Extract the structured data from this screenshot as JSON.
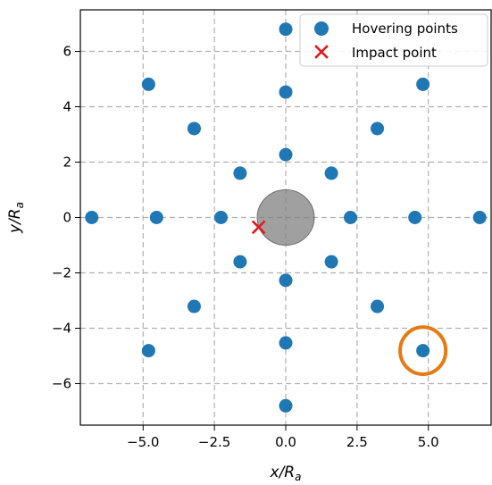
{
  "chart_data": {
    "type": "scatter",
    "xlabel": "x/R",
    "xlabel_sub": "a",
    "ylabel": "y/R",
    "ylabel_sub": "a",
    "xlim": [
      -7.2,
      7.2
    ],
    "ylim": [
      -7.5,
      7.5
    ],
    "xticks": [
      -5.0,
      -2.5,
      0.0,
      2.5,
      5.0
    ],
    "xtick_labels": [
      "−5.0",
      "−2.5",
      "0.0",
      "2.5",
      "5.0"
    ],
    "yticks": [
      -6,
      -4,
      -2,
      0,
      2,
      4,
      6
    ],
    "ytick_labels": [
      "−6",
      "−4",
      "−2",
      "0",
      "2",
      "4",
      "6"
    ],
    "grid": true,
    "legend_position": "top-right",
    "series": [
      {
        "name": "Hovering points",
        "marker": "circle",
        "color": "#1f77b4",
        "points": [
          [
            0,
            6.8
          ],
          [
            0,
            4.53
          ],
          [
            0,
            2.27
          ],
          [
            0,
            -2.27
          ],
          [
            0,
            -4.53
          ],
          [
            0,
            -6.8
          ],
          [
            6.8,
            0
          ],
          [
            4.53,
            0
          ],
          [
            2.27,
            0
          ],
          [
            -2.27,
            0
          ],
          [
            -4.53,
            0
          ],
          [
            -6.8,
            0
          ],
          [
            4.81,
            4.81
          ],
          [
            3.21,
            3.21
          ],
          [
            1.6,
            1.6
          ],
          [
            -4.81,
            4.81
          ],
          [
            -3.21,
            3.21
          ],
          [
            -1.6,
            1.6
          ],
          [
            4.81,
            -4.81
          ],
          [
            3.21,
            -3.21
          ],
          [
            1.6,
            -1.6
          ],
          [
            -4.81,
            -4.81
          ],
          [
            -3.21,
            -3.21
          ],
          [
            -1.6,
            -1.6
          ]
        ]
      },
      {
        "name": "Impact point",
        "marker": "x",
        "color": "#e31a1c",
        "points": [
          [
            -0.95,
            -0.35
          ]
        ]
      }
    ],
    "annotations": {
      "center_disk": {
        "x": 0,
        "y": 0,
        "radius": 1.0,
        "color": "#808080"
      },
      "highlight_ring": {
        "x": 4.81,
        "y": -4.81,
        "rx": 0.8,
        "ry": 0.85,
        "color": "#e67a13"
      }
    }
  }
}
